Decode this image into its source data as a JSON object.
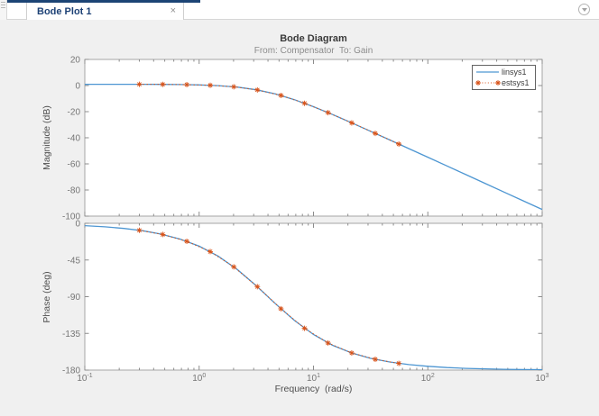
{
  "window": {
    "tab": {
      "label": "Bode Plot 1",
      "close": "×"
    }
  },
  "colors": {
    "navy_bar": "#1c4475",
    "tab_text": "#1e4276",
    "figure_bg": "#f0f0f0",
    "axes_border": "#a6a6a6",
    "linsys1": "#4d96d2",
    "estsys1": "#d95319"
  },
  "chart_data": [
    {
      "type": "line",
      "title": "Bode Diagram",
      "subtitle": "From: Compensator  To: Gain",
      "ylabel": "Magnitude (dB)",
      "xscale": "log",
      "xlim": [
        0.1,
        1000
      ],
      "ylim": [
        -100,
        20
      ],
      "yticks": [
        20,
        0,
        -20,
        -40,
        -60,
        -80,
        -100
      ],
      "xticks": [
        0.1,
        1,
        10,
        100,
        1000
      ],
      "xtick_exps": [
        "-1",
        "0",
        "1",
        "2",
        "3"
      ],
      "xtick_base": "10",
      "show_xticklabels": false,
      "grid": false,
      "legend_position": "top-right",
      "series": [
        {
          "name": "linsys1",
          "style": "solid",
          "x": [
            0.1,
            0.15,
            0.22,
            0.32,
            0.46,
            0.68,
            1,
            1.47,
            2.15,
            3.16,
            4.64,
            6.81,
            10,
            14.7,
            21.5,
            31.6,
            46.4,
            68.1,
            100,
            147,
            215,
            316,
            464,
            681,
            1000
          ],
          "y": [
            0.99,
            0.99,
            0.97,
            0.94,
            0.89,
            0.75,
            0.47,
            -0.1,
            -1.2,
            -3.21,
            -6.41,
            -10.82,
            -16.21,
            -22.23,
            -28.51,
            -35.04,
            -41.64,
            -48.27,
            -54.93,
            -61.62,
            -68.22,
            -74.91,
            -81.58,
            -88.25,
            -94.92
          ]
        },
        {
          "name": "estsys1",
          "style": "dotted-asterisk",
          "x": [
            0.3,
            0.48,
            0.78,
            1.25,
            2.01,
            3.23,
            5.19,
            8.35,
            13.4,
            21.6,
            34.7,
            55.8
          ],
          "y": [
            0.95,
            0.88,
            0.68,
            0.19,
            -0.96,
            -3.36,
            -7.57,
            -13.58,
            -20.74,
            -28.59,
            -36.65,
            -44.83
          ]
        }
      ]
    },
    {
      "type": "line",
      "ylabel": "Phase (deg)",
      "xlabel": "Frequency  (rad/s)",
      "xscale": "log",
      "xlim": [
        0.1,
        1000
      ],
      "ylim": [
        -180,
        0
      ],
      "yticks": [
        0,
        -45,
        -90,
        -135,
        -180
      ],
      "xticks": [
        0.1,
        1,
        10,
        100,
        1000
      ],
      "xtick_exps": [
        "-1",
        "0",
        "1",
        "2",
        "3"
      ],
      "xtick_base": "10",
      "show_xticklabels": true,
      "grid": false,
      "series": [
        {
          "name": "linsys1",
          "style": "solid",
          "x": [
            0.1,
            0.15,
            0.22,
            0.32,
            0.46,
            0.68,
            1,
            1.47,
            2.15,
            3.16,
            4.64,
            6.81,
            10,
            14.7,
            21.5,
            31.6,
            46.4,
            68.1,
            100,
            147,
            215,
            316,
            464,
            681,
            1000
          ],
          "y": [
            -2.9,
            -4.3,
            -6.3,
            -9.1,
            -13.1,
            -19.3,
            -28.1,
            -40.4,
            -56.5,
            -76.6,
            -98.5,
            -119.1,
            -136.4,
            -149.6,
            -158.9,
            -165.6,
            -170.1,
            -173.3,
            -175.4,
            -176.9,
            -177.9,
            -178.5,
            -179.0,
            -179.3,
            -179.5
          ]
        },
        {
          "name": "estsys1",
          "style": "dotted-asterisk",
          "x": [
            0.3,
            0.48,
            0.78,
            1.25,
            2.01,
            3.23,
            5.19,
            8.35,
            13.4,
            21.6,
            34.7,
            55.8
          ],
          "y": [
            -8.6,
            -13.7,
            -22.1,
            -34.7,
            -53.4,
            -77.7,
            -104.8,
            -128.8,
            -146.8,
            -159.0,
            -166.8,
            -171.8
          ]
        }
      ]
    }
  ]
}
